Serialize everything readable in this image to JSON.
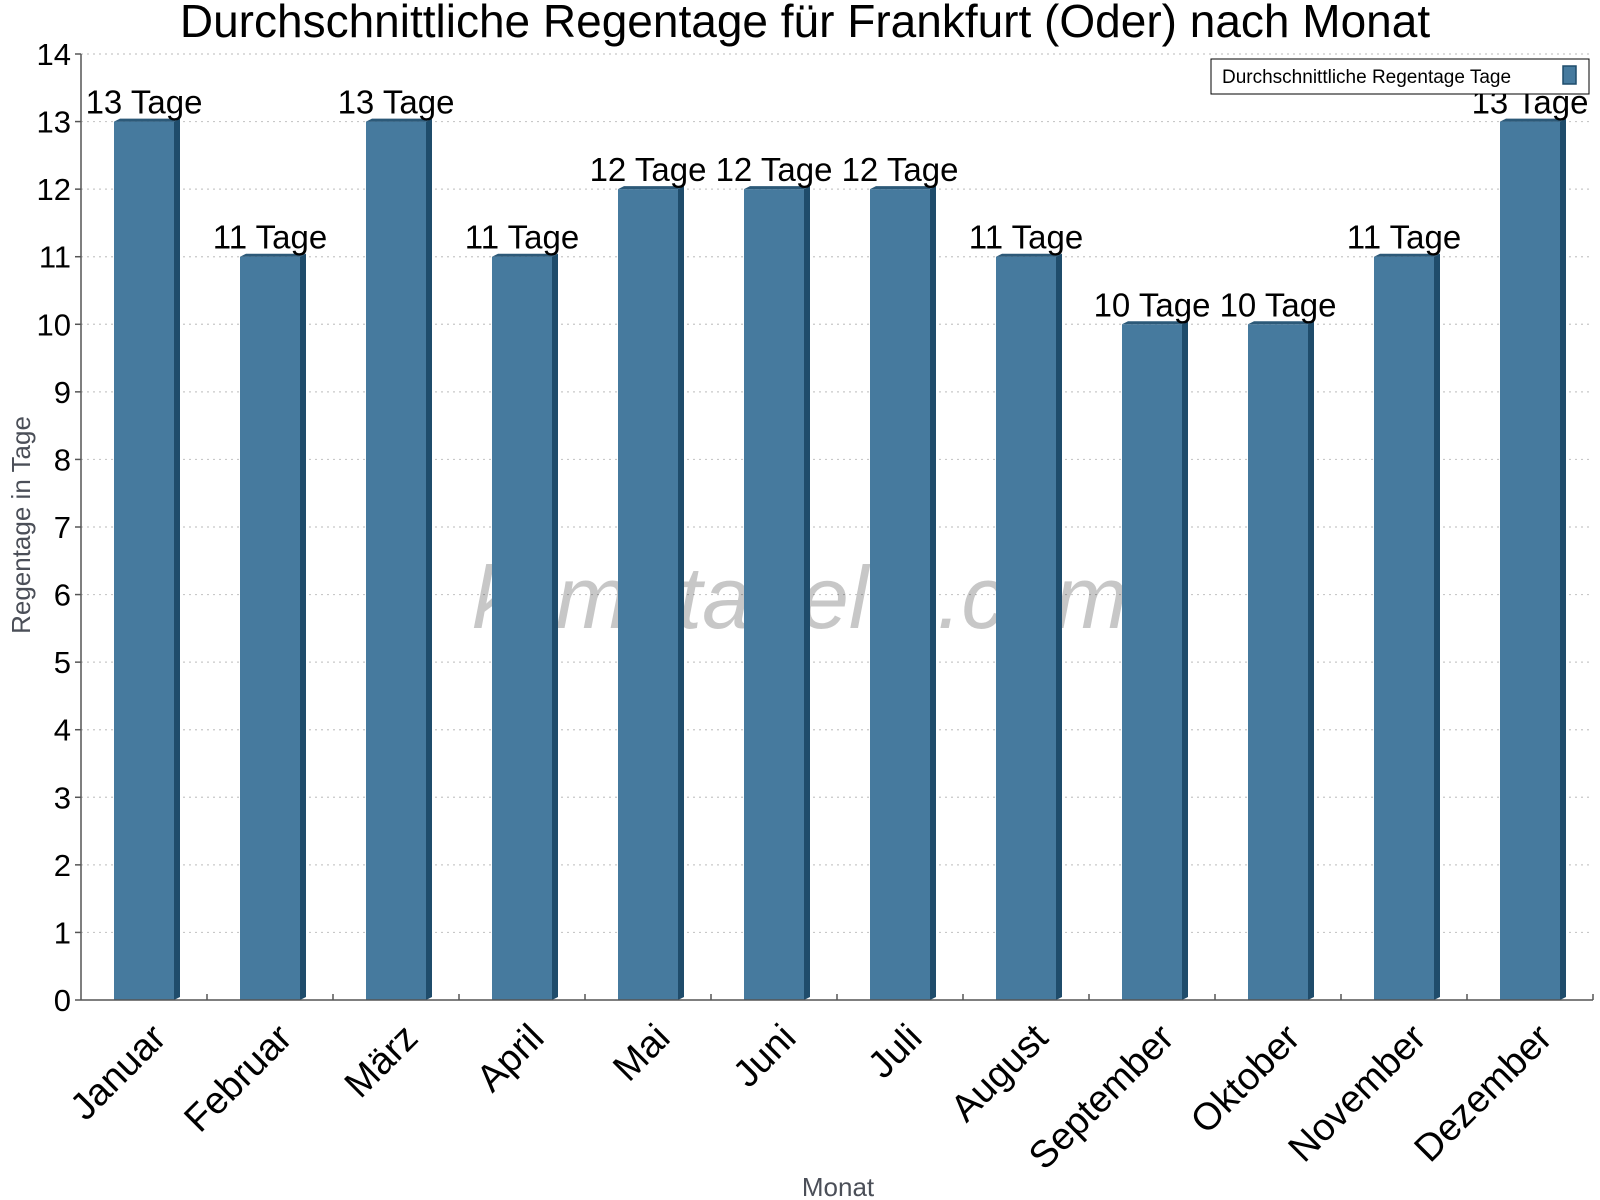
{
  "watermark": "klimatabelle.com",
  "colors": {
    "bar_front": "#467a9e",
    "bar_side": "#1f4c6b",
    "bar_top": "#2c5978"
  },
  "chart_data": {
    "type": "bar",
    "title": "Durchschnittliche Regentage für Frankfurt (Oder) nach Monat",
    "xlabel": "Monat",
    "ylabel": "Regentage in Tage",
    "ylim": [
      0,
      14
    ],
    "yticks": [
      0,
      1,
      2,
      3,
      4,
      5,
      6,
      7,
      8,
      9,
      10,
      11,
      12,
      13,
      14
    ],
    "grid": true,
    "legend_position": "top-right",
    "categories": [
      "Januar",
      "Februar",
      "März",
      "April",
      "Mai",
      "Juni",
      "Juli",
      "August",
      "September",
      "Oktober",
      "November",
      "Dezember"
    ],
    "series": [
      {
        "name": "Durchschnittliche Regentage Tage",
        "values": [
          13,
          11,
          13,
          11,
          12,
          12,
          12,
          11,
          10,
          10,
          11,
          13
        ],
        "data_labels": [
          "13 Tage",
          "11 Tage",
          "13 Tage",
          "11 Tage",
          "12 Tage",
          "12 Tage",
          "12 Tage",
          "11 Tage",
          "10 Tage",
          "10 Tage",
          "11 Tage",
          "13 Tage"
        ]
      }
    ]
  }
}
